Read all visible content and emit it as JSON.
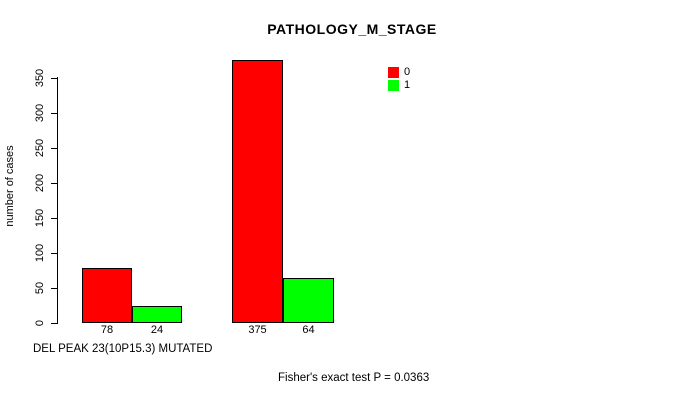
{
  "title": "PATHOLOGY_M_STAGE",
  "y_axis": {
    "label": "number of cases",
    "ticks": [
      0,
      50,
      100,
      150,
      200,
      250,
      300,
      350
    ]
  },
  "legend": {
    "items": [
      {
        "label": "0",
        "color": "#FF0000"
      },
      {
        "label": "1",
        "color": "#00FF00"
      }
    ]
  },
  "footer": {
    "x_variable_label": "DEL PEAK 23(10P15.3) MUTATED",
    "stat_text": "Fisher's exact test P = 0.0363"
  },
  "chart_data": {
    "type": "bar",
    "title": "PATHOLOGY_M_STAGE",
    "ylabel": "number of cases",
    "xlabel": "DEL PEAK 23(10P15.3) MUTATED",
    "series": [
      {
        "name": "0",
        "color": "#FF0000",
        "values": [
          78,
          375
        ]
      },
      {
        "name": "1",
        "color": "#00FF00",
        "values": [
          24,
          64
        ]
      }
    ],
    "x_tick_labels": [
      "78",
      "24",
      "375",
      "64"
    ],
    "yticks": [
      0,
      50,
      100,
      150,
      200,
      250,
      300,
      350
    ],
    "ylim": [
      0,
      380
    ],
    "grid": false,
    "legend_position": "top-right",
    "legend_entries": [
      "0",
      "1"
    ],
    "annotation": "Fisher's exact test P = 0.0363"
  }
}
